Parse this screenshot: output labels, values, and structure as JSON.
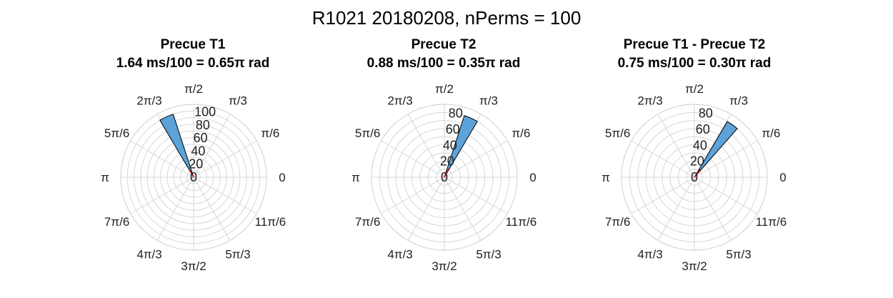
{
  "figure": {
    "title": "R1021 20180208, nPerms = 100"
  },
  "colors": {
    "bar_fill": "#5ba3d8",
    "bar_edge": "#000000",
    "mean_line": "#cc0000",
    "grid": "#d7d7d7"
  },
  "chart_data": [
    {
      "type": "polar-histogram",
      "title": "Precue T1",
      "subtitle": "1.64 ms/100 = 0.65π rad",
      "r_ticks": [
        "0",
        "20",
        "40",
        "60",
        "80",
        "100"
      ],
      "theta_ticks": [
        "0",
        "π/6",
        "π/3",
        "π/2",
        "2π/3",
        "5π/6",
        "π",
        "7π/6",
        "4π/3",
        "3π/2",
        "5π/3",
        "11π/6"
      ],
      "rlim": [
        0,
        110
      ],
      "bars": [
        {
          "theta_start_pi": 0.6,
          "theta_end_pi": 0.67,
          "count": 100
        }
      ],
      "mean_angle_pi": 0.65,
      "mean_length": 12
    },
    {
      "type": "polar-histogram",
      "title": "Precue T2",
      "subtitle": "0.88 ms/100 = 0.35π rad",
      "r_ticks": [
        "0",
        "20",
        "40",
        "60",
        "80"
      ],
      "theta_ticks": [
        "0",
        "π/6",
        "π/3",
        "π/2",
        "2π/3",
        "5π/6",
        "π",
        "7π/6",
        "4π/3",
        "3π/2",
        "5π/3",
        "11π/6"
      ],
      "rlim": [
        0,
        90
      ],
      "bars": [
        {
          "theta_start_pi": 0.33,
          "theta_end_pi": 0.4,
          "count": 80
        }
      ],
      "mean_angle_pi": 0.35,
      "mean_length": 12
    },
    {
      "type": "polar-histogram",
      "title": "Precue T1 - Precue T2",
      "subtitle": "0.75 ms/100 = 0.30π rad",
      "r_ticks": [
        "0",
        "20",
        "40",
        "60",
        "80"
      ],
      "theta_ticks": [
        "0",
        "π/6",
        "π/3",
        "π/2",
        "2π/3",
        "5π/6",
        "π",
        "7π/6",
        "4π/3",
        "3π/2",
        "5π/3",
        "11π/6"
      ],
      "rlim": [
        0,
        90
      ],
      "bars": [
        {
          "theta_start_pi": 0.27,
          "theta_end_pi": 0.33,
          "count": 80
        }
      ],
      "mean_angle_pi": 0.3,
      "mean_length": 12
    }
  ]
}
